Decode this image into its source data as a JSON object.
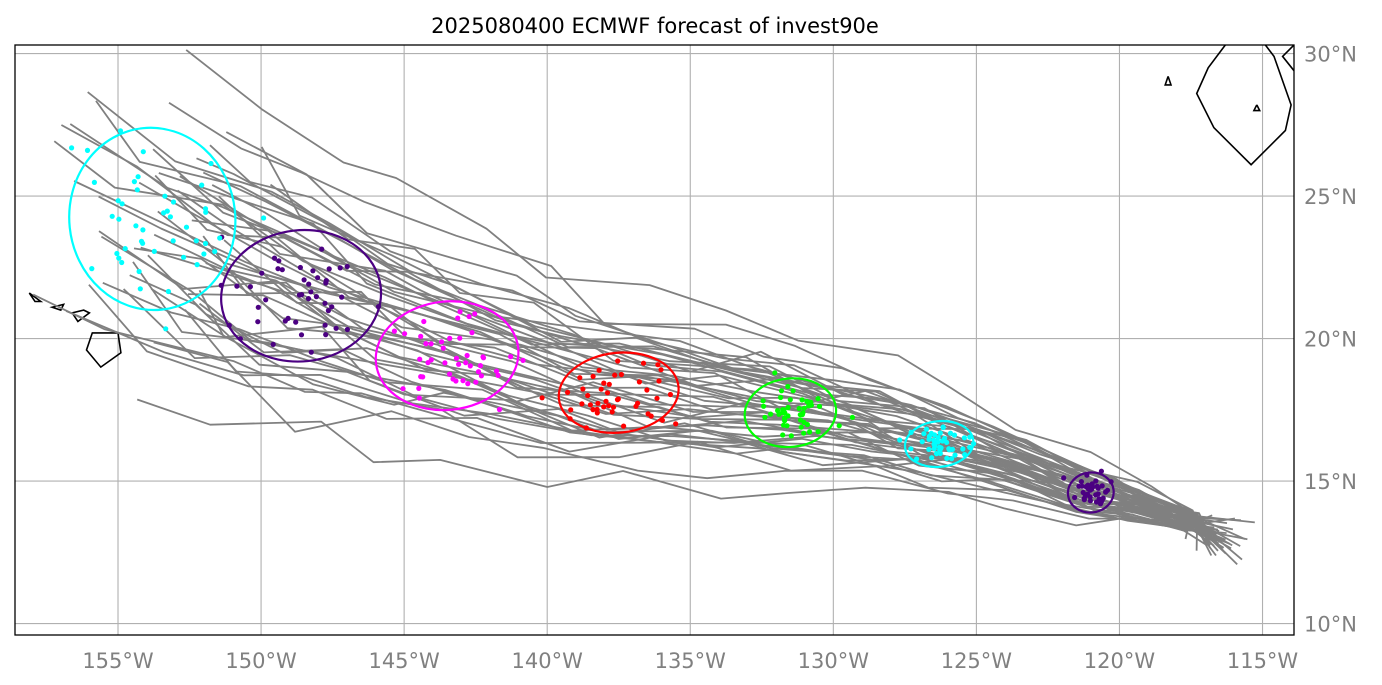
{
  "title": "2025080400 ECMWF forecast of invest90e",
  "map": {
    "lon_range": [
      -158.6,
      -113.9
    ],
    "lat_range": [
      9.6,
      30.3
    ],
    "x_ticks": [
      {
        "lon": -155,
        "label": "155°W"
      },
      {
        "lon": -150,
        "label": "150°W"
      },
      {
        "lon": -145,
        "label": "145°W"
      },
      {
        "lon": -140,
        "label": "140°W"
      },
      {
        "lon": -135,
        "label": "135°W"
      },
      {
        "lon": -130,
        "label": "130°W"
      },
      {
        "lon": -125,
        "label": "125°W"
      },
      {
        "lon": -120,
        "label": "120°W"
      },
      {
        "lon": -115,
        "label": "115°W"
      }
    ],
    "y_ticks": [
      {
        "lat": 10,
        "label": "10°N"
      },
      {
        "lat": 15,
        "label": "15°N"
      },
      {
        "lat": 20,
        "label": "20°N"
      },
      {
        "lat": 25,
        "label": "25°N"
      },
      {
        "lat": 30,
        "label": "30°N"
      }
    ],
    "grid": true,
    "track_color": "#808080",
    "coastline_color": "#000000"
  },
  "chart_data": {
    "type": "scatter",
    "description_units": "longitude (°E, negative = W) / latitude (°N)",
    "track_count": 50,
    "track_start": {
      "lon": -116.5,
      "lat": 13.0
    },
    "track_path": [
      [
        -116.5,
        13.0
      ],
      [
        -117.6,
        13.6
      ],
      [
        -119.5,
        14.2
      ],
      [
        -121.2,
        14.6
      ],
      [
        -123.8,
        15.6
      ],
      [
        -126.3,
        16.3
      ],
      [
        -128.8,
        16.9
      ],
      [
        -131.6,
        17.4
      ],
      [
        -134.5,
        17.8
      ],
      [
        -137.5,
        18.1
      ],
      [
        -140.5,
        18.8
      ],
      [
        -143.5,
        19.6
      ],
      [
        -146.3,
        20.6
      ],
      [
        -148.8,
        21.5
      ],
      [
        -151.5,
        22.7
      ],
      [
        -153.8,
        24.2
      ]
    ],
    "clusters": [
      {
        "color": "#4b0082",
        "center": [
          -121.0,
          14.6
        ],
        "radius": [
          0.8,
          0.7
        ],
        "spread": [
          0.7,
          0.55
        ],
        "n": 40
      },
      {
        "color": "#00ffff",
        "center": [
          -126.3,
          16.3
        ],
        "radius": [
          1.2,
          0.8
        ],
        "spread": [
          1.0,
          0.55
        ],
        "n": 45
      },
      {
        "color": "#00ff00",
        "center": [
          -131.5,
          17.4
        ],
        "radius": [
          1.6,
          1.2
        ],
        "spread": [
          1.4,
          0.9
        ],
        "n": 45
      },
      {
        "color": "#ff0000",
        "center": [
          -137.5,
          18.1
        ],
        "radius": [
          2.1,
          1.4
        ],
        "spread": [
          1.8,
          1.1
        ],
        "n": 45
      },
      {
        "color": "#ff00ff",
        "center": [
          -143.5,
          19.4
        ],
        "radius": [
          2.5,
          1.9
        ],
        "spread": [
          2.2,
          1.6
        ],
        "n": 45
      },
      {
        "color": "#4b0082",
        "center": [
          -148.6,
          21.5
        ],
        "radius": [
          2.8,
          2.3
        ],
        "spread": [
          2.6,
          1.9
        ],
        "n": 45
      },
      {
        "color": "#00ffff",
        "center": [
          -153.8,
          24.2
        ],
        "radius": [
          2.9,
          3.2
        ],
        "spread": [
          2.6,
          2.8
        ],
        "n": 45
      }
    ],
    "coastlines": {
      "hawaii": [
        [
          [
            -155.0,
            20.2
          ],
          [
            -155.9,
            20.2
          ],
          [
            -156.1,
            19.6
          ],
          [
            -155.6,
            19.0
          ],
          [
            -154.9,
            19.5
          ],
          [
            -155.0,
            20.2
          ]
        ],
        [
          [
            -156.0,
            20.9
          ],
          [
            -156.4,
            20.6
          ],
          [
            -156.6,
            20.9
          ],
          [
            -156.2,
            21.0
          ],
          [
            -156.0,
            20.9
          ]
        ],
        [
          [
            -156.9,
            21.2
          ],
          [
            -157.3,
            21.1
          ],
          [
            -157.0,
            21.0
          ],
          [
            -156.9,
            21.2
          ]
        ],
        [
          [
            -157.7,
            21.3
          ],
          [
            -158.1,
            21.6
          ],
          [
            -157.9,
            21.3
          ],
          [
            -157.7,
            21.3
          ]
        ],
        [
          [
            -159.3,
            22.2
          ],
          [
            -159.7,
            22.1
          ],
          [
            -159.4,
            21.9
          ],
          [
            -159.3,
            22.2
          ]
        ]
      ],
      "baja": [
        [
          [
            -116.3,
            30.3
          ],
          [
            -116.9,
            29.5
          ],
          [
            -117.3,
            28.6
          ],
          [
            -116.7,
            27.4
          ],
          [
            -115.4,
            26.1
          ],
          [
            -114.2,
            27.3
          ],
          [
            -114.0,
            28.2
          ],
          [
            -114.6,
            29.9
          ],
          [
            -114.9,
            30.3
          ]
        ],
        [
          [
            -113.9,
            30.3
          ],
          [
            -114.3,
            29.9
          ],
          [
            -113.9,
            29.4
          ]
        ],
        [
          [
            -118.3,
            29.2
          ],
          [
            -118.4,
            28.9
          ],
          [
            -118.2,
            28.9
          ],
          [
            -118.3,
            29.2
          ]
        ],
        [
          [
            -115.2,
            28.2
          ],
          [
            -115.3,
            28.0
          ],
          [
            -115.1,
            28.0
          ],
          [
            -115.2,
            28.2
          ]
        ]
      ]
    }
  }
}
